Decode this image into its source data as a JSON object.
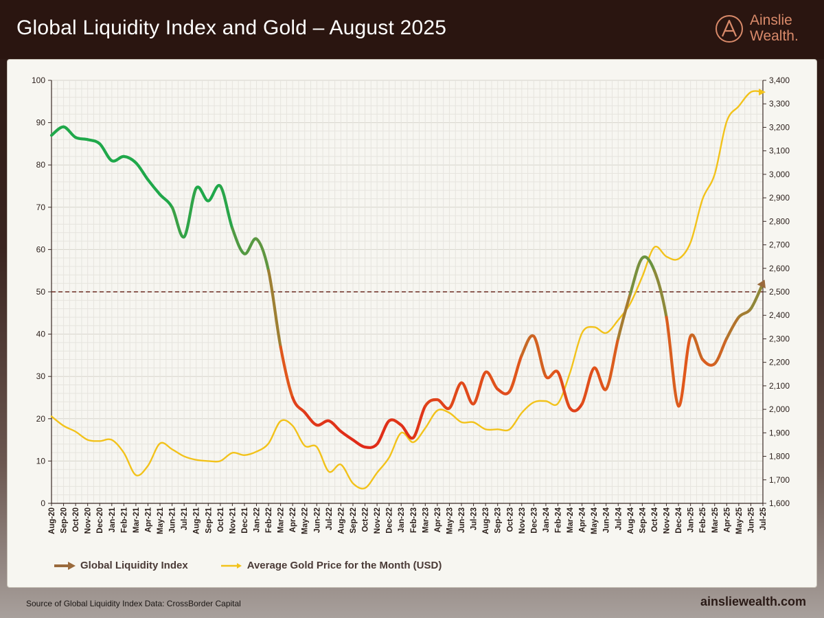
{
  "header": {
    "title": "Global Liquidity Index and Gold – August 2025",
    "brand_line1": "Ainslie",
    "brand_line2": "Wealth."
  },
  "footer": {
    "source": "Source of Global Liquidity Index Data: CrossBorder Capital",
    "url": "ainsliewealth.com"
  },
  "colors": {
    "liquidity_green": "#1fa84a",
    "liquidity_olive": "#8a8a3a",
    "liquidity_orange": "#e05a1c",
    "liquidity_red": "#e02a18",
    "gold": "#f2c21a",
    "legend_gli": "#9a6a3c",
    "reference_line": "#6a2a20",
    "brand": "#d98a6a"
  },
  "chart_data": {
    "type": "line",
    "title": "Global Liquidity Index and Gold – August 2025",
    "categories": [
      "Aug-20",
      "Sep-20",
      "Oct-20",
      "Nov-20",
      "Dec-20",
      "Jan-21",
      "Feb-21",
      "Mar-21",
      "Apr-21",
      "May-21",
      "Jun-21",
      "Jul-21",
      "Aug-21",
      "Sep-21",
      "Oct-21",
      "Nov-21",
      "Dec-21",
      "Jan-22",
      "Feb-22",
      "Mar-22",
      "Apr-22",
      "May-22",
      "Jun-22",
      "Jul-22",
      "Aug-22",
      "Sep-22",
      "Oct-22",
      "Nov-22",
      "Dec-22",
      "Jan-23",
      "Feb-23",
      "Mar-23",
      "Apr-23",
      "May-23",
      "Jun-23",
      "Jul-23",
      "Aug-23",
      "Sep-23",
      "Oct-23",
      "Nov-23",
      "Dec-23",
      "Jan-24",
      "Feb-24",
      "Mar-24",
      "Apr-24",
      "May-24",
      "Jun-24",
      "Jul-24",
      "Aug-24",
      "Sep-24",
      "Oct-24",
      "Nov-24",
      "Dec-24",
      "Jan-25",
      "Feb-25",
      "Mar-25",
      "Apr-25",
      "May-25",
      "Jun-25",
      "Jul-25"
    ],
    "series": [
      {
        "name": "Global Liquidity Index",
        "axis": "left",
        "values": [
          87,
          89,
          86.5,
          86,
          85,
          81,
          82,
          80.5,
          76.5,
          73,
          70,
          63,
          74.5,
          71.5,
          75,
          65,
          59,
          62.5,
          55,
          37,
          25,
          21.5,
          18.5,
          19.5,
          17,
          15,
          13.3,
          14,
          19.5,
          18.5,
          15.5,
          23,
          24.5,
          22.5,
          28.5,
          23.5,
          31,
          27,
          26.5,
          35,
          39.5,
          30,
          31,
          22.5,
          23.5,
          32,
          27,
          39,
          49.5,
          58,
          55,
          44,
          23,
          39.5,
          34,
          33,
          39,
          44,
          46,
          52
        ]
      },
      {
        "name": "Average Gold Price for the Month (USD)",
        "axis": "right",
        "values": [
          1970,
          1930,
          1905,
          1870,
          1865,
          1870,
          1815,
          1720,
          1760,
          1855,
          1830,
          1800,
          1785,
          1780,
          1780,
          1815,
          1805,
          1820,
          1855,
          1950,
          1930,
          1845,
          1840,
          1735,
          1765,
          1685,
          1665,
          1730,
          1795,
          1900,
          1860,
          1920,
          1995,
          1985,
          1945,
          1945,
          1915,
          1915,
          1915,
          1985,
          2030,
          2035,
          2025,
          2155,
          2325,
          2350,
          2325,
          2380,
          2450,
          2565,
          2690,
          2650,
          2640,
          2710,
          2895,
          3000,
          3225,
          3290,
          3350,
          3350
        ]
      }
    ],
    "y_left": {
      "min": 0,
      "max": 100,
      "ticks": [
        "0",
        "10",
        "20",
        "30",
        "40",
        "50",
        "60",
        "70",
        "80",
        "90",
        "100"
      ]
    },
    "y_right": {
      "min": 1600,
      "max": 3400,
      "ticks": [
        "1,600",
        "1,700",
        "1,800",
        "1,900",
        "2,000",
        "2,100",
        "2,200",
        "2,300",
        "2,400",
        "2,500",
        "2,600",
        "2,700",
        "2,800",
        "2,900",
        "3,000",
        "3,100",
        "3,200",
        "3,300",
        "3,400"
      ]
    },
    "reference_line": {
      "axis": "left",
      "value": 50
    },
    "grid": true,
    "legend_position": "bottom-left"
  }
}
